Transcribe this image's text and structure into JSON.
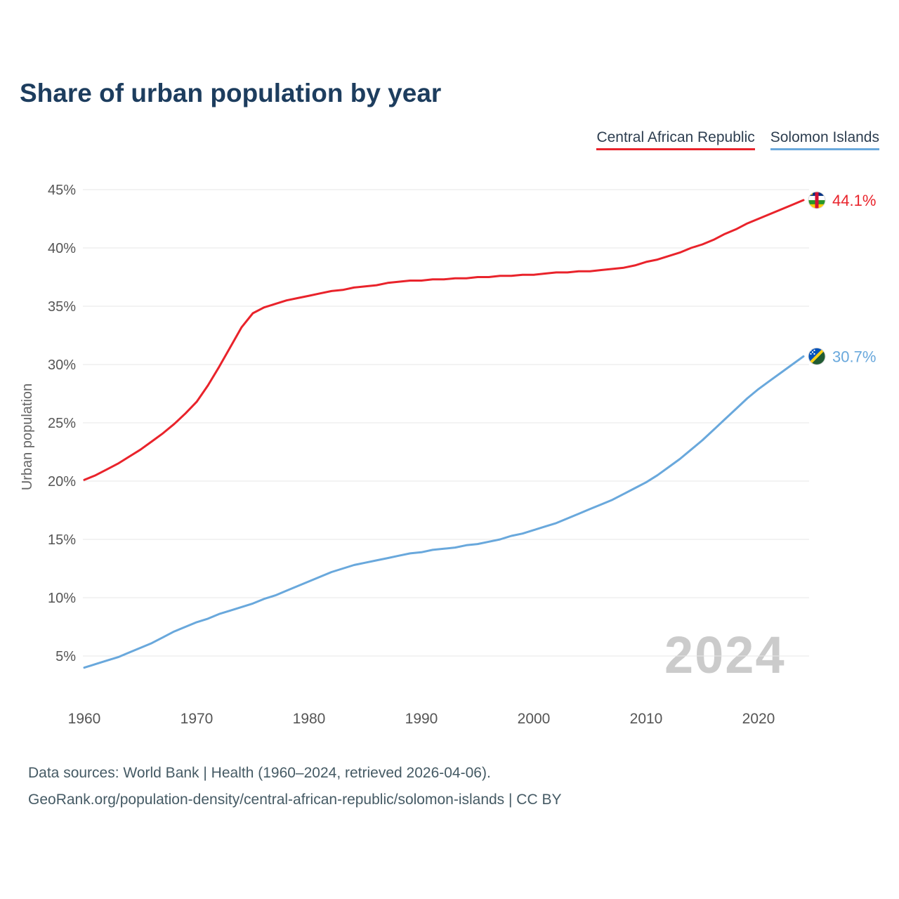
{
  "title": "Share of urban population by year",
  "watermark": "2024",
  "legend": {
    "items": [
      {
        "label": "Central African Republic",
        "color": "#e9232b"
      },
      {
        "label": "Solomon Islands",
        "color": "#69a8dc"
      }
    ]
  },
  "footer": {
    "line1": "Data sources: World Bank | Health (1960–2024, retrieved 2026-04-06).",
    "line2": "GeoRank.org/population-density/central-african-republic/solomon-islands | CC BY"
  },
  "chart_data": {
    "type": "line",
    "title": "Share of urban population by year",
    "xlabel": "",
    "ylabel": "Urban population",
    "x_start": 1960,
    "xlim": [
      1960,
      2024
    ],
    "ylim": [
      0,
      47
    ],
    "x_ticks": [
      1960,
      1970,
      1980,
      1990,
      2000,
      2010,
      2020
    ],
    "y_ticks": [
      5,
      10,
      15,
      20,
      25,
      30,
      35,
      40,
      45
    ],
    "y_tick_suffix": "%",
    "grid": "horizontal",
    "legend_position": "top-right",
    "gridline_color": "#e7e7e7",
    "series": [
      {
        "name": "Central African Republic",
        "color": "#e9232b",
        "flag": "central-african-republic",
        "end_label": "44.1%",
        "values": [
          20.1,
          20.5,
          21.0,
          21.5,
          22.1,
          22.7,
          23.4,
          24.1,
          24.9,
          25.8,
          26.8,
          28.2,
          29.8,
          31.5,
          33.2,
          34.4,
          34.9,
          35.2,
          35.5,
          35.7,
          35.9,
          36.1,
          36.3,
          36.4,
          36.6,
          36.7,
          36.8,
          37.0,
          37.1,
          37.2,
          37.2,
          37.3,
          37.3,
          37.4,
          37.4,
          37.5,
          37.5,
          37.6,
          37.6,
          37.7,
          37.7,
          37.8,
          37.9,
          37.9,
          38.0,
          38.0,
          38.1,
          38.2,
          38.3,
          38.5,
          38.8,
          39.0,
          39.3,
          39.6,
          40.0,
          40.3,
          40.7,
          41.2,
          41.6,
          42.1,
          42.5,
          42.9,
          43.3,
          43.7,
          44.1
        ]
      },
      {
        "name": "Solomon Islands",
        "color": "#69a8dc",
        "flag": "solomon-islands",
        "end_label": "30.7%",
        "values": [
          4.0,
          4.3,
          4.6,
          4.9,
          5.3,
          5.7,
          6.1,
          6.6,
          7.1,
          7.5,
          7.9,
          8.2,
          8.6,
          8.9,
          9.2,
          9.5,
          9.9,
          10.2,
          10.6,
          11.0,
          11.4,
          11.8,
          12.2,
          12.5,
          12.8,
          13.0,
          13.2,
          13.4,
          13.6,
          13.8,
          13.9,
          14.1,
          14.2,
          14.3,
          14.5,
          14.6,
          14.8,
          15.0,
          15.3,
          15.5,
          15.8,
          16.1,
          16.4,
          16.8,
          17.2,
          17.6,
          18.0,
          18.4,
          18.9,
          19.4,
          19.9,
          20.5,
          21.2,
          21.9,
          22.7,
          23.5,
          24.4,
          25.3,
          26.2,
          27.1,
          27.9,
          28.6,
          29.3,
          30.0,
          30.7
        ]
      }
    ]
  }
}
